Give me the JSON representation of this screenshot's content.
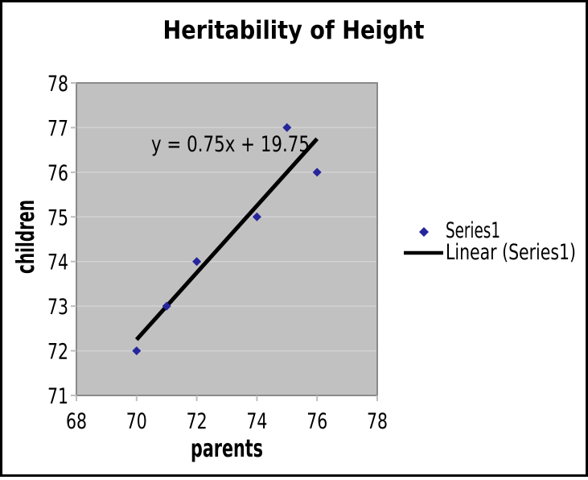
{
  "chart_data": {
    "type": "scatter",
    "title": "Heritability of Height",
    "xlabel": "parents",
    "ylabel": "children",
    "xlim": [
      68,
      78
    ],
    "ylim": [
      71,
      78
    ],
    "x_ticks": [
      68,
      70,
      72,
      74,
      76,
      78
    ],
    "y_ticks": [
      71,
      72,
      73,
      74,
      75,
      76,
      77,
      78
    ],
    "grid": "horizontal-only",
    "series": [
      {
        "name": "Series1",
        "marker": "diamond",
        "color": "#26269c",
        "points": [
          [
            70,
            72
          ],
          [
            71,
            73
          ],
          [
            72,
            74
          ],
          [
            74,
            75
          ],
          [
            75,
            77
          ],
          [
            76,
            76
          ]
        ]
      }
    ],
    "trendline": {
      "label": "Linear (Series1)",
      "equation": "y = 0.75x + 19.75",
      "slope": 0.75,
      "intercept": 19.75,
      "x_range": [
        70,
        76
      ],
      "color": "#000000"
    },
    "legend": {
      "position": "right",
      "entries": [
        {
          "label": "Series1",
          "swatch": "diamond"
        },
        {
          "label": "Linear (Series1)",
          "swatch": "line"
        }
      ]
    },
    "colors": {
      "background": "#ffffff",
      "frame_border": "#000000",
      "plot_bg": "#c1c1c1",
      "plot_border": "#8a8a8a",
      "gridline": "#d2d2d2",
      "tick": "#bdbdbd",
      "text": "#000000"
    }
  }
}
